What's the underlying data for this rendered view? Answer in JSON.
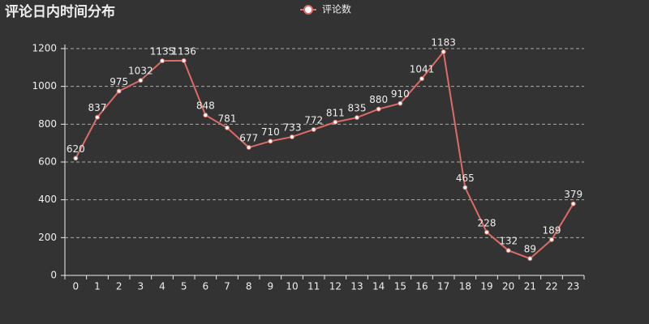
{
  "chart_data": {
    "type": "line",
    "title": "评论日内时间分布",
    "categories": [
      "0",
      "1",
      "2",
      "3",
      "4",
      "5",
      "6",
      "7",
      "8",
      "9",
      "10",
      "11",
      "12",
      "13",
      "14",
      "15",
      "16",
      "17",
      "18",
      "19",
      "20",
      "21",
      "22",
      "23"
    ],
    "series": [
      {
        "name": "评论数",
        "color": "#dd6b66",
        "values": [
          620,
          837,
          975,
          1032,
          1135,
          1136,
          848,
          781,
          677,
          710,
          733,
          772,
          811,
          835,
          880,
          910,
          1041,
          1183,
          465,
          228,
          132,
          89,
          189,
          379
        ]
      }
    ],
    "ylim": [
      0,
      1200
    ],
    "yticks": [
      0,
      200,
      400,
      600,
      800,
      1000,
      1200
    ],
    "grid": true,
    "data_labels": true
  }
}
